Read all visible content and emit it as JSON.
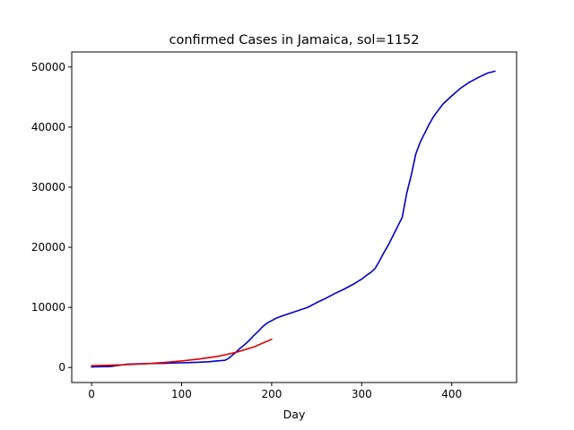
{
  "chart_data": {
    "type": "line",
    "title": "confirmed Cases in Jamaica, sol=1152",
    "xlabel": "Day",
    "ylabel": "",
    "xlim": [
      -22,
      472
    ],
    "ylim": [
      -2500,
      52500
    ],
    "xticks": [
      0,
      100,
      200,
      300,
      400
    ],
    "yticks": [
      0,
      10000,
      20000,
      30000,
      40000,
      50000
    ],
    "xtick_labels": [
      "0",
      "100",
      "200",
      "300",
      "400"
    ],
    "ytick_labels": [
      "0",
      "10000",
      "20000",
      "30000",
      "40000",
      "50000"
    ],
    "grid": false,
    "series": [
      {
        "color": "#0000cc",
        "x": [
          0,
          10,
          20,
          25,
          30,
          35,
          40,
          50,
          60,
          70,
          80,
          90,
          100,
          110,
          120,
          130,
          140,
          148,
          152,
          156,
          160,
          165,
          170,
          175,
          180,
          185,
          190,
          195,
          200,
          205,
          210,
          220,
          230,
          240,
          250,
          260,
          270,
          280,
          290,
          300,
          305,
          310,
          315,
          320,
          325,
          330,
          335,
          340,
          345,
          350,
          355,
          360,
          365,
          370,
          375,
          380,
          385,
          390,
          400,
          410,
          420,
          430,
          440,
          448
        ],
        "y": [
          100,
          130,
          150,
          250,
          350,
          450,
          550,
          600,
          650,
          680,
          700,
          750,
          780,
          820,
          880,
          950,
          1100,
          1200,
          1500,
          2000,
          2500,
          3200,
          3800,
          4500,
          5300,
          6000,
          6800,
          7400,
          7800,
          8200,
          8500,
          9000,
          9500,
          10000,
          10800,
          11500,
          12300,
          13000,
          13800,
          14700,
          15300,
          15800,
          16500,
          17800,
          19200,
          20500,
          22000,
          23500,
          25000,
          29000,
          32000,
          35500,
          37500,
          39000,
          40500,
          41800,
          42800,
          43800,
          45200,
          46500,
          47500,
          48300,
          49000,
          49300
        ]
      },
      {
        "color": "#dd0000",
        "x": [
          0,
          20,
          40,
          60,
          80,
          100,
          120,
          140,
          160,
          180,
          200
        ],
        "y": [
          300,
          380,
          480,
          620,
          820,
          1080,
          1420,
          1850,
          2500,
          3400,
          4700
        ]
      }
    ]
  }
}
